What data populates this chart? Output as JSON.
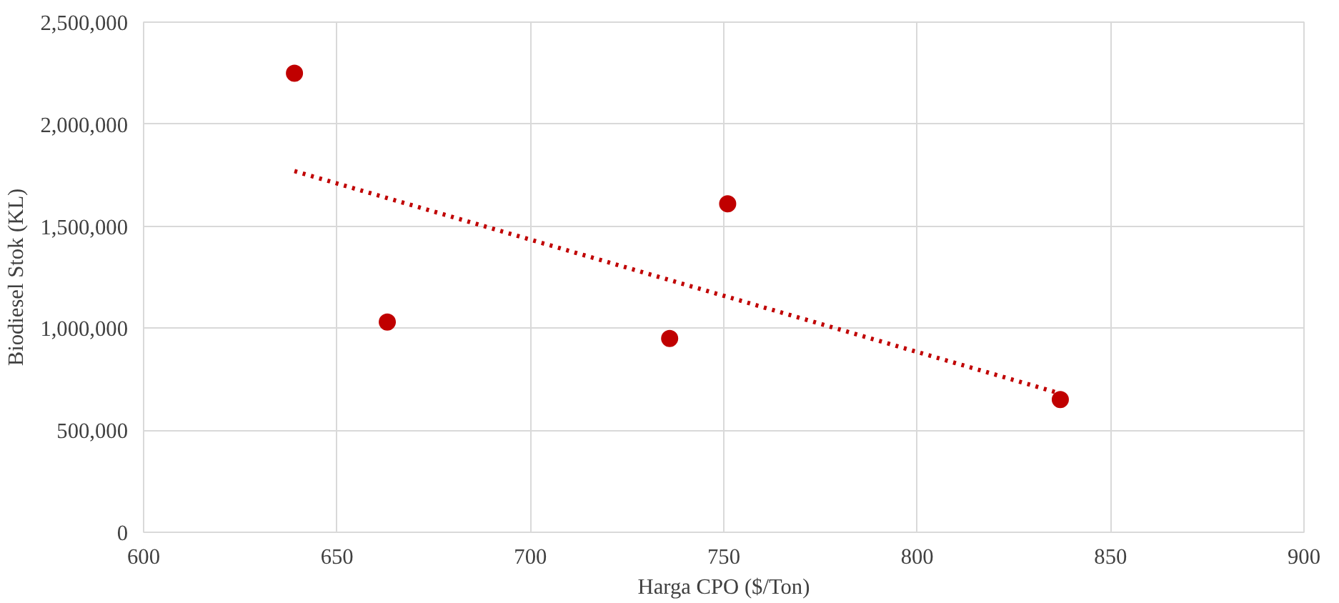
{
  "chart_data": {
    "type": "scatter",
    "xlabel": "Harga CPO ($/Ton)",
    "ylabel": "Biodiesel Stok (KL)",
    "xlim": [
      600,
      900
    ],
    "xticks": [
      600,
      650,
      700,
      750,
      800,
      850,
      900
    ],
    "ylim": [
      0,
      2500000
    ],
    "yticks": [
      {
        "value": 0,
        "label": "0"
      },
      {
        "value": 500000,
        "label": "500,000"
      },
      {
        "value": 1000000,
        "label": "1,000,000"
      },
      {
        "value": 1500000,
        "label": "1,500,000"
      },
      {
        "value": 2000000,
        "label": "2,000,000"
      },
      {
        "value": 2500000,
        "label": "2,500,000"
      }
    ],
    "grid": true,
    "marker": "circle",
    "series": [
      {
        "color": "#c00000",
        "x": [
          639,
          663,
          736,
          751,
          837
        ],
        "values": [
          2250000,
          1030000,
          950000,
          1610000,
          650000
        ]
      },
      {
        "type": "line",
        "color": "#c00000",
        "line_style": "dotted",
        "marker": "none",
        "x": [
          639,
          837
        ],
        "values": [
          1770000,
          680000
        ]
      }
    ]
  }
}
